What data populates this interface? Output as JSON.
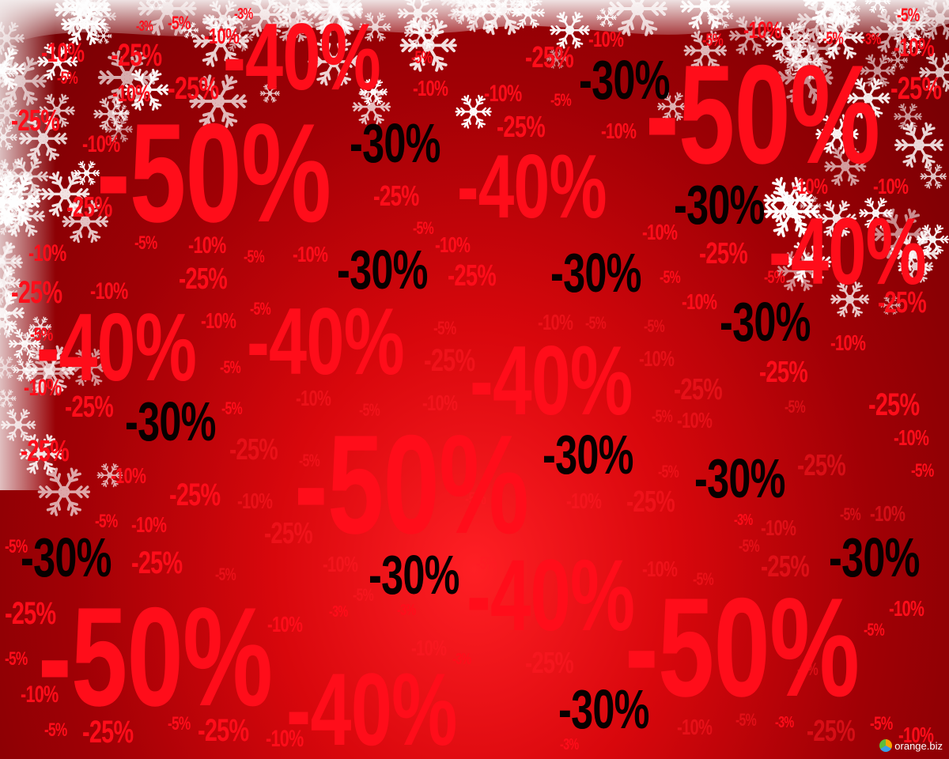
{
  "labels": {
    "m5": "-5%",
    "m10": "-10%",
    "m25": "-25%",
    "m30": "-30%",
    "m40": "-40%",
    "m50": "-50%",
    "m3": "-3%"
  },
  "watermark": "orange.biz",
  "colors": {
    "background_dark": "#6d0003",
    "background_bright": "#ff1f24",
    "label_red": "#ff0d1a",
    "label_black": "#080000",
    "frost": "#ffffff"
  },
  "icons": [
    "snowflake-icon"
  ]
}
